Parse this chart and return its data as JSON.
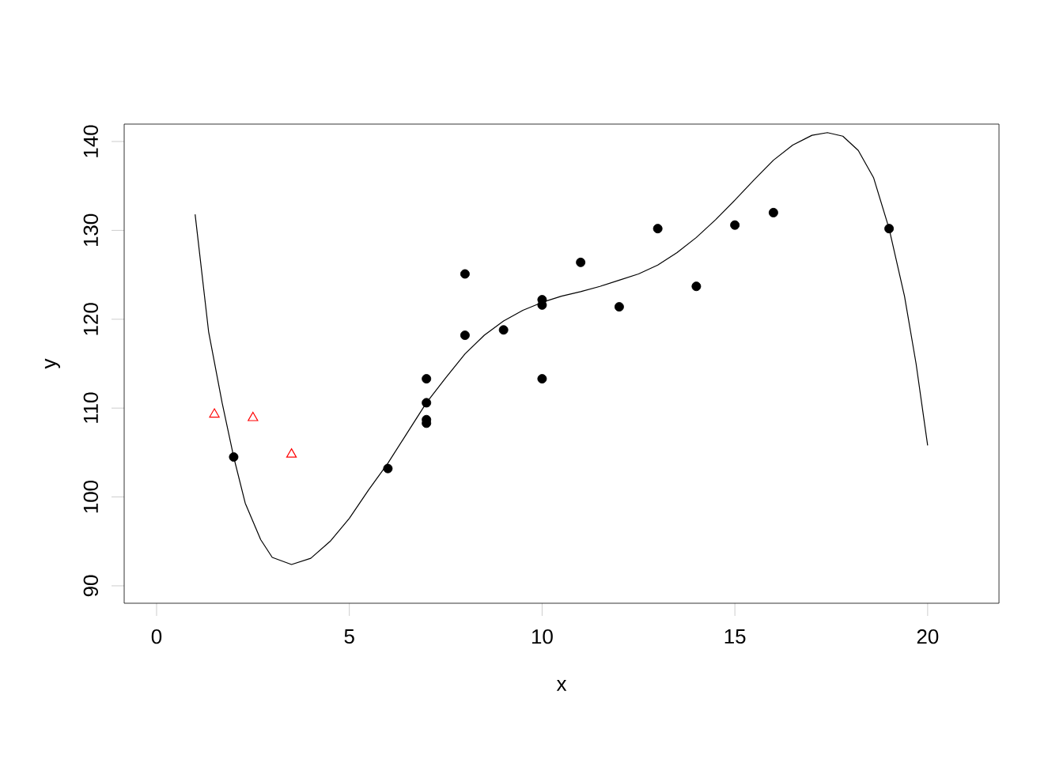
{
  "chart_data": {
    "type": "scatter",
    "xlabel": "x",
    "ylabel": "y",
    "xlim": [
      -0.84,
      21.85
    ],
    "ylim": [
      88.04,
      141.96
    ],
    "xticks": [
      0,
      5,
      10,
      15,
      20
    ],
    "yticks": [
      90,
      100,
      110,
      120,
      130,
      140
    ],
    "series": [
      {
        "color": "#000000",
        "marker": "circle",
        "x": [
          2,
          6,
          7,
          7,
          7,
          7,
          8,
          8,
          9,
          10,
          10,
          10,
          11,
          12,
          13,
          14,
          15,
          16,
          19
        ],
        "values": [
          104.5,
          103.2,
          113.3,
          110.6,
          108.7,
          108.3,
          125.1,
          118.2,
          118.8,
          122.2,
          121.6,
          113.3,
          126.4,
          121.4,
          130.2,
          123.7,
          130.6,
          132.0,
          130.2
        ]
      },
      {
        "color": "#ff0000",
        "marker": "triangle",
        "x": [
          1.5,
          2.5,
          3.5
        ],
        "values": [
          109.3,
          108.9,
          104.8
        ]
      },
      {
        "type": "line",
        "color": "#000000",
        "marker": "none",
        "x": [
          1,
          1.35,
          1.7,
          2,
          2.3,
          2.7,
          3,
          3.5,
          4,
          4.5,
          5,
          5.5,
          6,
          6.5,
          7,
          7.5,
          8,
          8.5,
          9,
          9.5,
          10,
          10.5,
          11,
          11.5,
          12,
          12.5,
          13,
          13.5,
          14,
          14.5,
          15,
          15.5,
          16,
          16.5,
          17,
          17.4,
          17.8,
          18.2,
          18.6,
          19,
          19.4,
          19.7,
          20
        ],
        "values": [
          131.8,
          118.6,
          110.6,
          104.5,
          99.3,
          95.2,
          93.2,
          92.4,
          93.1,
          95.0,
          97.6,
          100.8,
          103.8,
          107.2,
          110.6,
          113.4,
          116.1,
          118.2,
          119.8,
          121.0,
          121.9,
          122.6,
          123.1,
          123.7,
          124.4,
          125.1,
          126.1,
          127.5,
          129.2,
          131.2,
          133.4,
          135.7,
          137.9,
          139.6,
          140.7,
          141.0,
          140.6,
          139.0,
          135.9,
          130.2,
          122.6,
          115.0,
          105.8
        ]
      }
    ]
  }
}
